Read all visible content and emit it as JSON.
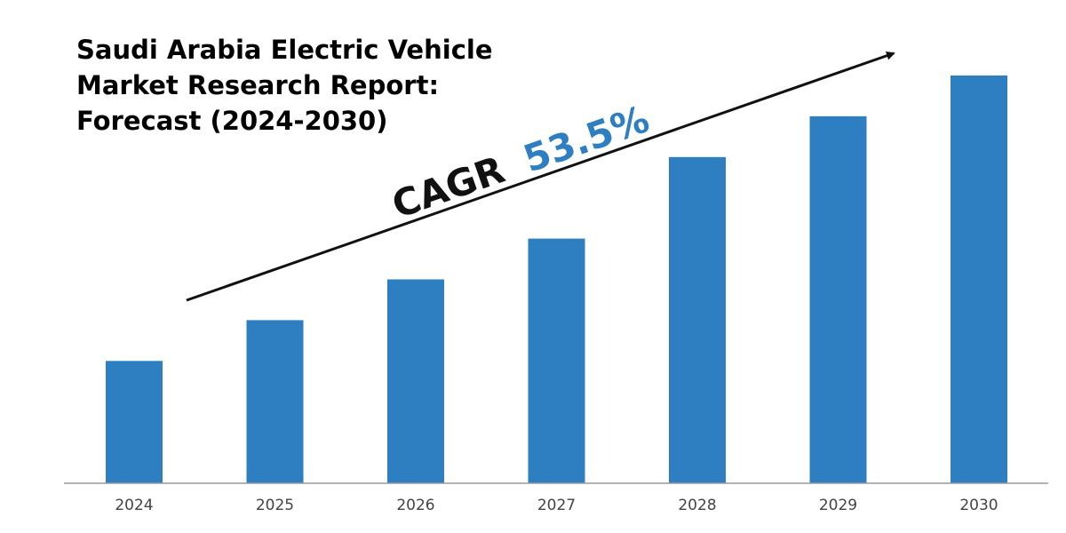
{
  "chart_data": {
    "type": "bar",
    "title": {
      "lines": [
        "Saudi Arabia Electric Vehicle",
        "Market Research Report:",
        "Forecast (2024-2030)"
      ]
    },
    "categories": [
      "2024",
      "2025",
      "2026",
      "2027",
      "2028",
      "2029",
      "2030"
    ],
    "values": [
      30,
      40,
      50,
      60,
      80,
      90,
      100
    ],
    "ylim": [
      0,
      100
    ],
    "xlabel": "",
    "ylabel": "",
    "grid": false,
    "legend": null,
    "bar_color": "#2e7ec2",
    "axis_color": "#9a9a9a",
    "annotation": {
      "label": "CAGR",
      "value": "53.5%",
      "value_color": "#2e7ec2",
      "arrow_color": "#111111"
    }
  }
}
